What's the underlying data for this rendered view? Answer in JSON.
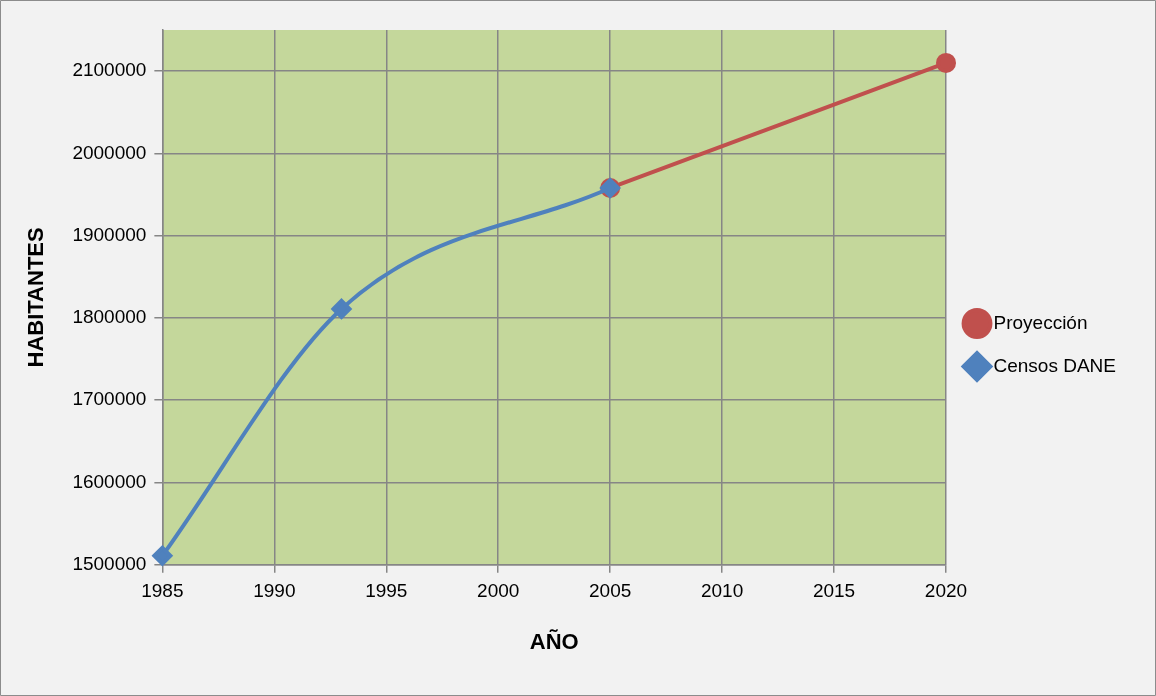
{
  "chart_data": {
    "type": "line",
    "xlabel": "AÑO",
    "ylabel": "HABITANTES",
    "xlim": [
      1985,
      2020
    ],
    "xticks": [
      1985,
      1990,
      1995,
      2000,
      2005,
      2010,
      2015,
      2020
    ],
    "ylim": [
      1500000,
      2150000
    ],
    "yticks": [
      1500000,
      1600000,
      1700000,
      1800000,
      1900000,
      2000000,
      2100000
    ],
    "grid": true,
    "legend": "right",
    "series": [
      {
        "name": "Proyección",
        "color": "#c0504d",
        "marker": "circle",
        "x": [
          2005,
          2020
        ],
        "values": [
          1958000,
          2110000
        ]
      },
      {
        "name": "Censos DANE",
        "color": "#4f81bd",
        "marker": "diamond",
        "x": [
          1985,
          1993,
          2005
        ],
        "values": [
          1511000,
          1811000,
          1958000
        ]
      }
    ]
  }
}
